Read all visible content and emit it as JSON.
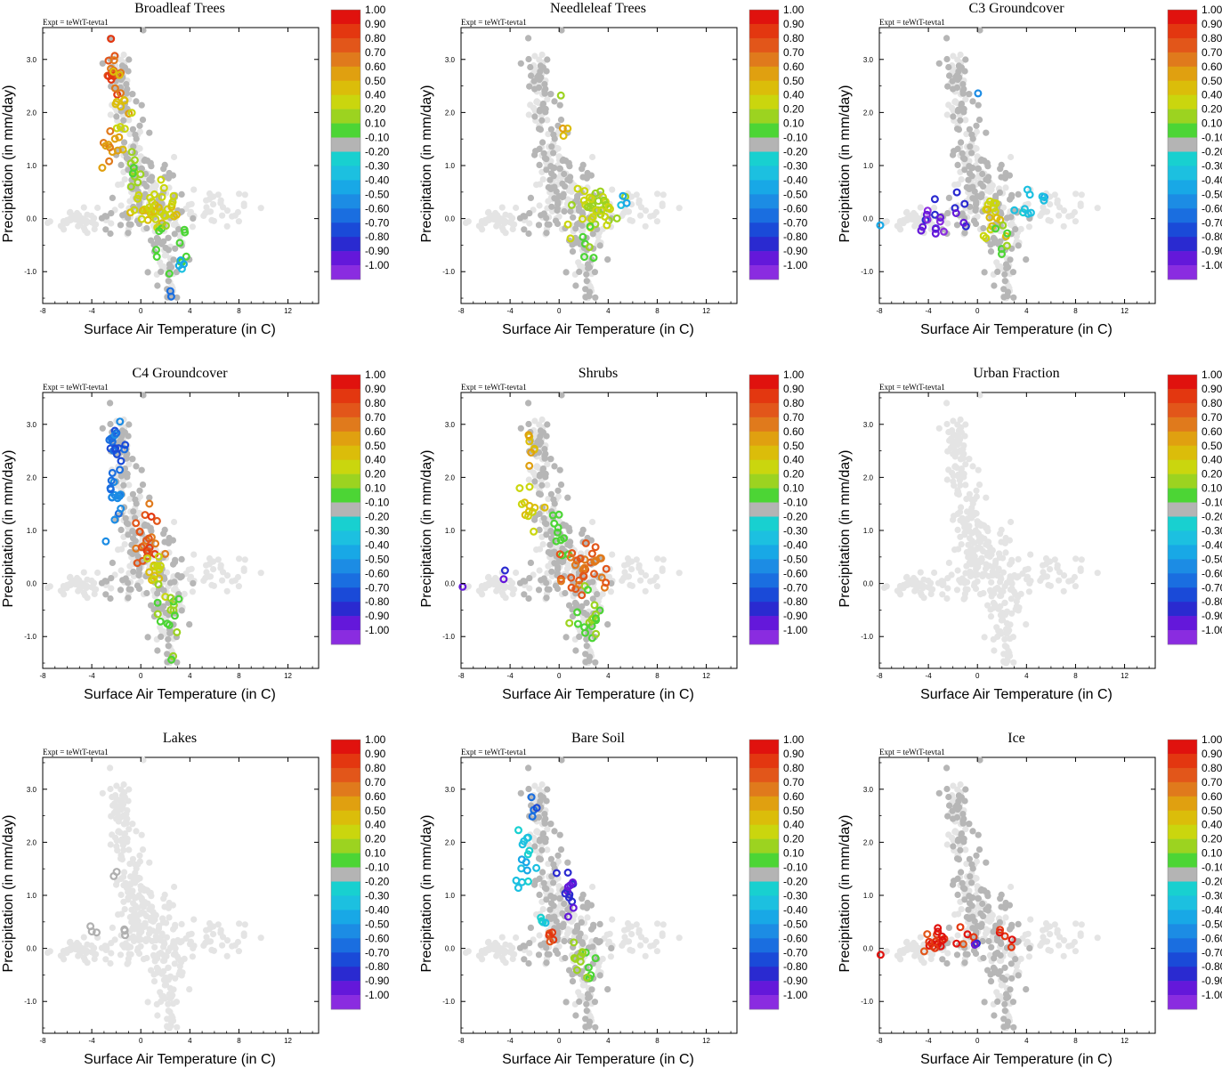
{
  "figure": {
    "expt_label": "Expt = teWtT-tevta1",
    "x_label": "Surface Air Temperature (in C)",
    "y_label": "Precipitation (in mm/day)"
  },
  "colorbar": {
    "labels": [
      "1.00",
      "0.90",
      "0.80",
      "0.70",
      "0.60",
      "0.50",
      "0.40",
      "0.20",
      "0.10",
      "-0.10",
      "-0.20",
      "-0.30",
      "-0.40",
      "-0.50",
      "-0.60",
      "-0.70",
      "-0.80",
      "-0.90",
      "-1.00"
    ],
    "colors": [
      "#e0120e",
      "#e33710",
      "#e2561a",
      "#e07a1c",
      "#e0a010",
      "#dbbd0a",
      "#cad60e",
      "#9cd320",
      "#4cd535",
      "#b4b4b4",
      "#18d0d0",
      "#1cc0e0",
      "#18a8e6",
      "#1c8ce4",
      "#1a6ee0",
      "#1a4ad8",
      "#2a2ad0",
      "#6418da",
      "#8a2ce0"
    ]
  },
  "chart_data": [
    {
      "type": "scatter",
      "title": "Broadleaf Trees",
      "xlabel": "Surface Air Temperature (in C)",
      "ylabel": "Precipitation (in mm/day)",
      "xlim": [
        -8,
        14.5
      ],
      "ylim": [
        -1.6,
        3.6
      ],
      "xticks": [
        "-8",
        "-4",
        "0",
        "4",
        "8",
        "12"
      ],
      "yticks": [
        "3.0",
        "2.0",
        "1.0",
        "0.0",
        "-1.0"
      ],
      "clusters": [
        {
          "x": -2.2,
          "y": 2.7,
          "dx": 0.6,
          "dy": 0.4,
          "n": 18,
          "v": 0.8
        },
        {
          "x": -1.6,
          "y": 2.0,
          "dx": 0.8,
          "dy": 0.6,
          "n": 14,
          "v": 0.5
        },
        {
          "x": -2.3,
          "y": 1.3,
          "dx": 0.7,
          "dy": 0.3,
          "n": 10,
          "v": 0.7
        },
        {
          "x": -0.4,
          "y": 0.9,
          "dx": 0.6,
          "dy": 0.4,
          "n": 10,
          "v": 0.2
        },
        {
          "x": 1.5,
          "y": 0.15,
          "dx": 1.6,
          "dy": 0.35,
          "n": 40,
          "v": 0.4
        },
        {
          "x": 2.3,
          "y": -0.5,
          "dx": 1.0,
          "dy": 0.5,
          "n": 12,
          "v": 0.1
        },
        {
          "x": 3.4,
          "y": -0.9,
          "dx": 0.4,
          "dy": 0.15,
          "n": 4,
          "v": -0.35
        },
        {
          "x": 2.5,
          "y": -1.4,
          "dx": 0.2,
          "dy": 0.1,
          "n": 2,
          "v": -0.55
        }
      ]
    },
    {
      "type": "scatter",
      "title": "Needleleaf Trees",
      "xlabel": "Surface Air Temperature (in C)",
      "ylabel": "Precipitation (in mm/day)",
      "xlim": [
        -8,
        14.5
      ],
      "ylim": [
        -1.6,
        3.6
      ],
      "xticks": [
        "-8",
        "-4",
        "0",
        "4",
        "8",
        "12"
      ],
      "yticks": [
        "3.0",
        "2.0",
        "1.0",
        "0.0",
        "-1.0"
      ],
      "clusters": [
        {
          "x": 0.2,
          "y": 2.3,
          "dx": 0.2,
          "dy": 0.1,
          "n": 1,
          "v": 0.15
        },
        {
          "x": 0.2,
          "y": 1.6,
          "dx": 0.4,
          "dy": 0.15,
          "n": 3,
          "v": 0.5
        },
        {
          "x": 3.0,
          "y": 0.15,
          "dx": 1.6,
          "dy": 0.35,
          "n": 40,
          "v": 0.3
        },
        {
          "x": 2.3,
          "y": -0.5,
          "dx": 0.6,
          "dy": 0.3,
          "n": 6,
          "v": 0.1
        },
        {
          "x": 5.2,
          "y": 0.3,
          "dx": 0.4,
          "dy": 0.3,
          "n": 3,
          "v": -0.3
        }
      ]
    },
    {
      "type": "scatter",
      "title": "C3 Groundcover",
      "xlabel": "Surface Air Temperature (in C)",
      "ylabel": "Precipitation (in mm/day)",
      "xlim": [
        -8,
        14.5
      ],
      "ylim": [
        -1.6,
        3.6
      ],
      "xticks": [
        "-8",
        "-4",
        "0",
        "4",
        "8",
        "12"
      ],
      "yticks": [
        "3.0",
        "2.0",
        "1.0",
        "0.0",
        "-1.0"
      ],
      "clusters": [
        {
          "x": 0.1,
          "y": 2.4,
          "dx": 0.2,
          "dy": 0.1,
          "n": 1,
          "v": -0.5
        },
        {
          "x": -4.0,
          "y": 0.0,
          "dx": 1.3,
          "dy": 0.35,
          "n": 14,
          "v": -0.88
        },
        {
          "x": -1.2,
          "y": 0.1,
          "dx": 0.6,
          "dy": 0.25,
          "n": 6,
          "v": -0.82
        },
        {
          "x": 1.4,
          "y": 0.1,
          "dx": 0.8,
          "dy": 0.35,
          "n": 16,
          "v": 0.45
        },
        {
          "x": 2.0,
          "y": -0.5,
          "dx": 0.6,
          "dy": 0.3,
          "n": 6,
          "v": 0.12
        },
        {
          "x": 4.0,
          "y": 0.3,
          "dx": 1.5,
          "dy": 0.25,
          "n": 10,
          "v": -0.3
        },
        {
          "x": -7.9,
          "y": -0.1,
          "dx": 0.1,
          "dy": 0.05,
          "n": 1,
          "v": -0.4
        }
      ]
    },
    {
      "type": "scatter",
      "title": "C4 Groundcover",
      "xlabel": "Surface Air Temperature (in C)",
      "ylabel": "Precipitation (in mm/day)",
      "xlim": [
        -8,
        14.5
      ],
      "ylim": [
        -1.6,
        3.6
      ],
      "xticks": [
        "-8",
        "-4",
        "0",
        "4",
        "8",
        "12"
      ],
      "yticks": [
        "3.0",
        "2.0",
        "1.0",
        "0.0",
        "-1.0"
      ],
      "clusters": [
        {
          "x": -2.0,
          "y": 2.5,
          "dx": 0.6,
          "dy": 0.5,
          "n": 18,
          "v": -0.6
        },
        {
          "x": -2.2,
          "y": 1.5,
          "dx": 0.8,
          "dy": 0.5,
          "n": 16,
          "v": -0.55
        },
        {
          "x": 0.5,
          "y": 0.8,
          "dx": 0.9,
          "dy": 0.45,
          "n": 22,
          "v": 0.8
        },
        {
          "x": 1.3,
          "y": 0.2,
          "dx": 0.8,
          "dy": 0.3,
          "n": 14,
          "v": 0.45
        },
        {
          "x": 2.2,
          "y": -0.5,
          "dx": 1.3,
          "dy": 0.4,
          "n": 14,
          "v": 0.15
        },
        {
          "x": 2.5,
          "y": -1.4,
          "dx": 0.2,
          "dy": 0.1,
          "n": 2,
          "v": 0.12
        }
      ]
    },
    {
      "type": "scatter",
      "title": "Shrubs",
      "xlabel": "Surface Air Temperature (in C)",
      "ylabel": "Precipitation (in mm/day)",
      "xlim": [
        -8,
        14.5
      ],
      "ylim": [
        -1.6,
        3.6
      ],
      "xticks": [
        "-8",
        "-4",
        "0",
        "4",
        "8",
        "12"
      ],
      "yticks": [
        "3.0",
        "2.0",
        "1.0",
        "0.0",
        "-1.0"
      ],
      "clusters": [
        {
          "x": -2.4,
          "y": 2.6,
          "dx": 0.5,
          "dy": 0.3,
          "n": 7,
          "v": 0.55
        },
        {
          "x": -2.5,
          "y": 1.5,
          "dx": 0.8,
          "dy": 0.5,
          "n": 12,
          "v": 0.45
        },
        {
          "x": 0.0,
          "y": 0.9,
          "dx": 0.8,
          "dy": 0.5,
          "n": 10,
          "v": 0.1
        },
        {
          "x": 2.0,
          "y": 0.3,
          "dx": 1.6,
          "dy": 0.35,
          "n": 34,
          "v": 0.75
        },
        {
          "x": 2.5,
          "y": -0.6,
          "dx": 1.2,
          "dy": 0.45,
          "n": 18,
          "v": 0.15
        },
        {
          "x": -4.5,
          "y": 0.2,
          "dx": 0.2,
          "dy": 0.2,
          "n": 2,
          "v": -0.8
        },
        {
          "x": -7.9,
          "y": -0.1,
          "dx": 0.1,
          "dy": 0.05,
          "n": 1,
          "v": -0.82
        }
      ]
    },
    {
      "type": "scatter",
      "title": "Urban Fraction",
      "xlabel": "Surface Air Temperature (in C)",
      "ylabel": "Precipitation (in mm/day)",
      "xlim": [
        -8,
        14.5
      ],
      "ylim": [
        -1.6,
        3.6
      ],
      "xticks": [
        "-8",
        "-4",
        "0",
        "4",
        "8",
        "12"
      ],
      "yticks": [
        "3.0",
        "2.0",
        "1.0",
        "0.0",
        "-1.0"
      ],
      "clusters": []
    },
    {
      "type": "scatter",
      "title": "Lakes",
      "xlabel": "Surface Air Temperature (in C)",
      "ylabel": "Precipitation (in mm/day)",
      "xlim": [
        -8,
        14.5
      ],
      "ylim": [
        -1.6,
        3.6
      ],
      "xticks": [
        "-8",
        "-4",
        "0",
        "4",
        "8",
        "12"
      ],
      "yticks": [
        "3.0",
        "2.0",
        "1.0",
        "0.0",
        "-1.0"
      ],
      "clusters": [
        {
          "x": -4.0,
          "y": 0.35,
          "dx": 0.3,
          "dy": 0.1,
          "n": 3,
          "v": 0.0
        },
        {
          "x": -1.1,
          "y": 0.3,
          "dx": 0.4,
          "dy": 0.1,
          "n": 3,
          "v": 0.0
        },
        {
          "x": -2.2,
          "y": 1.4,
          "dx": 0.3,
          "dy": 0.1,
          "n": 2,
          "v": 0.0
        }
      ]
    },
    {
      "type": "scatter",
      "title": "Bare Soil",
      "xlabel": "Surface Air Temperature (in C)",
      "ylabel": "Precipitation (in mm/day)",
      "xlim": [
        -8,
        14.5
      ],
      "ylim": [
        -1.6,
        3.6
      ],
      "xticks": [
        "-8",
        "-4",
        "0",
        "4",
        "8",
        "12"
      ],
      "yticks": [
        "3.0",
        "2.0",
        "1.0",
        "0.0",
        "-1.0"
      ],
      "clusters": [
        {
          "x": -2.2,
          "y": 2.6,
          "dx": 0.4,
          "dy": 0.3,
          "n": 4,
          "v": -0.65
        },
        {
          "x": -2.8,
          "y": 1.6,
          "dx": 0.9,
          "dy": 0.5,
          "n": 16,
          "v": -0.3
        },
        {
          "x": 0.8,
          "y": 1.1,
          "dx": 0.7,
          "dy": 0.45,
          "n": 14,
          "v": -0.82
        },
        {
          "x": -0.7,
          "y": 0.1,
          "dx": 0.5,
          "dy": 0.2,
          "n": 5,
          "v": 0.88
        },
        {
          "x": 2.0,
          "y": -0.3,
          "dx": 0.9,
          "dy": 0.4,
          "n": 14,
          "v": 0.15
        },
        {
          "x": -1.3,
          "y": 0.5,
          "dx": 0.6,
          "dy": 0.2,
          "n": 4,
          "v": -0.25
        }
      ]
    },
    {
      "type": "scatter",
      "title": "Ice",
      "xlabel": "Surface Air Temperature (in C)",
      "ylabel": "Precipitation (in mm/day)",
      "xlim": [
        -8,
        14.5
      ],
      "ylim": [
        -1.6,
        3.6
      ],
      "xticks": [
        "-8",
        "-4",
        "0",
        "4",
        "8",
        "12"
      ],
      "yticks": [
        "3.0",
        "2.0",
        "1.0",
        "0.0",
        "-1.0"
      ],
      "clusters": [
        {
          "x": -3.5,
          "y": 0.15,
          "dx": 1.3,
          "dy": 0.2,
          "n": 18,
          "v": 0.92
        },
        {
          "x": -1.0,
          "y": 0.15,
          "dx": 0.8,
          "dy": 0.2,
          "n": 6,
          "v": 0.92
        },
        {
          "x": 2.7,
          "y": 0.2,
          "dx": 0.8,
          "dy": 0.2,
          "n": 5,
          "v": 0.92
        },
        {
          "x": -0.1,
          "y": 0.05,
          "dx": 0.2,
          "dy": 0.08,
          "n": 2,
          "v": -0.85
        },
        {
          "x": -7.9,
          "y": -0.1,
          "dx": 0.05,
          "dy": 0.05,
          "n": 1,
          "v": 0.9
        }
      ]
    }
  ]
}
